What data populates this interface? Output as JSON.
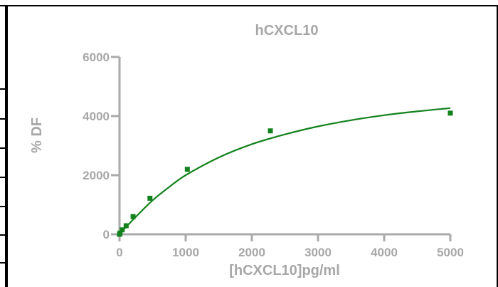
{
  "chart_data": {
    "type": "scatter",
    "title": "hCXCL10",
    "xlabel": "[hCXCL10]pg/ml",
    "ylabel": "% DF",
    "xlim": [
      0,
      5000
    ],
    "ylim": [
      0,
      6000
    ],
    "x_ticks": [
      0,
      1000,
      2000,
      3000,
      4000,
      5000
    ],
    "y_ticks": [
      0,
      2000,
      4000,
      6000
    ],
    "x_tick_labels": [
      "0",
      "1000",
      "2000",
      "3000",
      "4000",
      "5000"
    ],
    "y_tick_labels": [
      "0",
      "2000",
      "4000",
      "6000"
    ],
    "grid": false,
    "series": [
      {
        "marker": "square",
        "x": [
          0,
          8,
          40,
          100,
          205,
          460,
          1025,
          2280,
          5000
        ],
        "y": [
          0,
          40,
          150,
          290,
          600,
          1220,
          2200,
          3500,
          4100
        ]
      }
    ],
    "fit_curve": {
      "model": "saturation",
      "points": [
        [
          0,
          0
        ],
        [
          100,
          250
        ],
        [
          250,
          600
        ],
        [
          500,
          1150
        ],
        [
          750,
          1600
        ],
        [
          1000,
          2000
        ],
        [
          1500,
          2600
        ],
        [
          2000,
          3050
        ],
        [
          2500,
          3380
        ],
        [
          3000,
          3650
        ],
        [
          3500,
          3860
        ],
        [
          4000,
          4030
        ],
        [
          4500,
          4160
        ],
        [
          5000,
          4270
        ]
      ]
    },
    "colors": {
      "series": "#12821c",
      "axis": "#aaaaaa",
      "text": "#a7a7a7",
      "frame": "#000000"
    }
  }
}
